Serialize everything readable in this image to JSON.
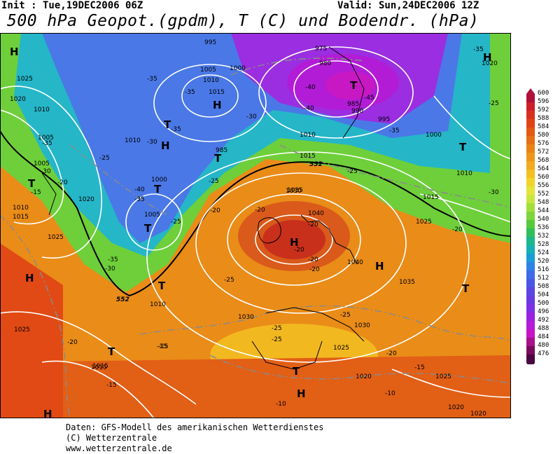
{
  "header": {
    "init": "Init : Tue,19DEC2006 06Z",
    "valid": "Valid: Sun,24DEC2006 12Z",
    "title": "500 hPa Geopot.(gpdm), T (C) und Bodendr. (hPa)"
  },
  "scale": {
    "values": [
      "600",
      "596",
      "592",
      "588",
      "584",
      "580",
      "576",
      "572",
      "568",
      "564",
      "560",
      "556",
      "552",
      "548",
      "544",
      "540",
      "536",
      "532",
      "528",
      "524",
      "520",
      "516",
      "512",
      "508",
      "504",
      "500",
      "496",
      "492",
      "488",
      "484",
      "480",
      "476"
    ],
    "colors": [
      "#b0113a",
      "#cc1f2a",
      "#d9301e",
      "#e04416",
      "#e35a14",
      "#e66e14",
      "#ea8216",
      "#ee961a",
      "#f2aa1e",
      "#f4bf22",
      "#f2d32a",
      "#e6e33a",
      "#c8e640",
      "#a3df3c",
      "#7dd53a",
      "#55c93a",
      "#2fbf5a",
      "#1ab88a",
      "#14b0b4",
      "#1a9cd6",
      "#2e82e6",
      "#3e6ae8",
      "#4b56e4",
      "#5a46e0",
      "#6a3ae0",
      "#8030e2",
      "#9a22e0",
      "#b41cd8",
      "#c814c8",
      "#a8108c",
      "#7a0a60",
      "#4a0640"
    ]
  },
  "map_labels": {
    "pressure_lows": [
      "H",
      "H",
      "H",
      "H",
      "H",
      "H",
      "H",
      "H",
      "H"
    ],
    "troughs": [
      "T",
      "T",
      "T",
      "T",
      "T",
      "T",
      "T",
      "T",
      "T",
      "T",
      "T"
    ],
    "isobars": [
      "1025",
      "1020",
      "1010",
      "1005",
      "1005",
      "1010",
      "1020",
      "1010",
      "1015",
      "1025",
      "1025",
      "1010",
      "1005",
      "1000",
      "1015",
      "995",
      "1005",
      "1010",
      "1015",
      "1000",
      "985",
      "1010",
      "1015",
      "1030",
      "1035",
      "1040",
      "1040",
      "1030",
      "1035",
      "1030",
      "1025",
      "1020",
      "1015",
      "1025",
      "975",
      "980",
      "985",
      "990",
      "995",
      "1000",
      "1010",
      "1020",
      "1015",
      "1025",
      "1020",
      "1020"
    ],
    "temps": [
      "-35",
      "-35",
      "-35",
      "-30",
      "-30",
      "-35",
      "-30",
      "-25",
      "-20",
      "-15",
      "-40",
      "-35",
      "-35",
      "-30",
      "-25",
      "-20",
      "-25",
      "-20",
      "-25",
      "-20",
      "-20",
      "-20",
      "-25",
      "-25",
      "-20",
      "-15",
      "-40",
      "-40",
      "-45",
      "-35",
      "-25",
      "-25",
      "-30",
      "-35",
      "-20",
      "-20",
      "-15",
      "-10",
      "-10",
      "-15",
      "-25",
      "-15",
      "-20"
    ],
    "contour_552_a": "552",
    "contour_552_b": "552",
    "contour_552_c": "552"
  },
  "footer": {
    "line1": "Daten: GFS-Modell des amerikanischen Wetterdienstes",
    "line2": "(C) Wetterzentrale",
    "line3": "www.wetterzentrale.de"
  }
}
